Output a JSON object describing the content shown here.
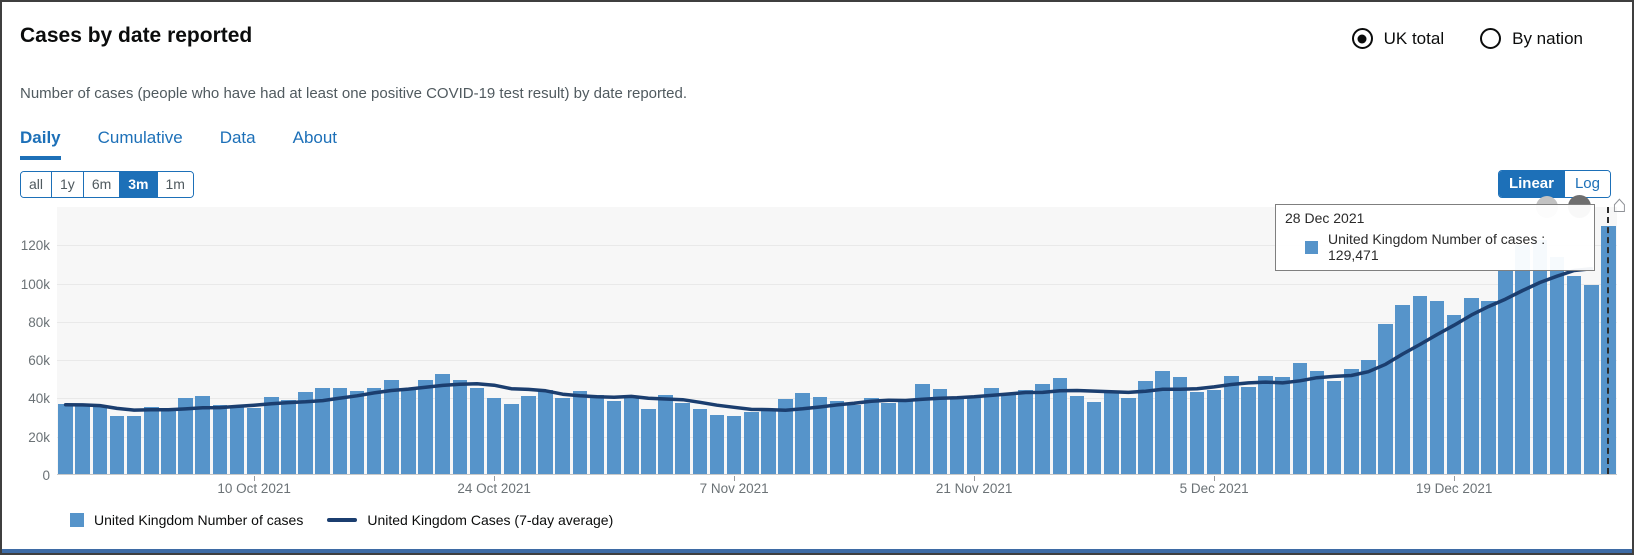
{
  "page": {
    "title": "Cases by date reported",
    "subtitle": "Number of cases (people who have had at least one positive COVID-19 test result) by date reported."
  },
  "area_toggle": {
    "uk_total": "UK total",
    "by_nation": "By nation",
    "selected": "UK total"
  },
  "tabs": {
    "daily": "Daily",
    "cumulative": "Cumulative",
    "data": "Data",
    "about": "About",
    "active": "Daily"
  },
  "ranges": {
    "all": "all",
    "y1": "1y",
    "m6": "6m",
    "m3": "3m",
    "m1": "1m",
    "active": "3m"
  },
  "scale": {
    "linear": "Linear",
    "log": "Log",
    "active": "Linear"
  },
  "tooltip": {
    "date": "28 Dec 2021",
    "series_text": "United Kingdom Number of cases : 129,471",
    "value": "129,471"
  },
  "legend": {
    "bars": "United Kingdom Number of cases",
    "line": "United Kingdom Cases (7-day average)"
  },
  "theme": {
    "accent_blue": "#1d70b8",
    "bar_blue": "#5694ca",
    "line_navy": "#1b3e6f",
    "text_gray": "#505a5f",
    "axis_gray": "#6b7276",
    "plot_bg": "#f7f7f7",
    "tooltip_border": "#7f7f7f"
  },
  "chart_data": {
    "type": "bar",
    "title": "Cases by date reported",
    "xlabel": "Date reported",
    "ylabel": "Number of cases",
    "x_range": [
      "29 Sep 2021",
      "28 Dec 2021"
    ],
    "n_points": 91,
    "x_tick_labels": [
      "10 Oct 2021",
      "24 Oct 2021",
      "7 Nov 2021",
      "21 Nov 2021",
      "5 Dec 2021",
      "19 Dec 2021"
    ],
    "x_tick_indices": [
      11,
      25,
      39,
      53,
      67,
      81
    ],
    "y_ticks": [
      "0",
      "20k",
      "40k",
      "60k",
      "80k",
      "100k",
      "120k"
    ],
    "y_tick_values": [
      0,
      20000,
      40000,
      60000,
      80000,
      100000,
      120000
    ],
    "ylim": [
      0,
      140000
    ],
    "grid": "horizontal",
    "legend_position": "bottom",
    "highlighted_point": {
      "x": "28 Dec 2021",
      "series": "United Kingdom Number of cases",
      "value": 129471
    },
    "series": [
      {
        "name": "United Kingdom Number of cases",
        "type": "bar",
        "color": "#5694ca",
        "values": [
          36722,
          36480,
          35577,
          30301,
          30439,
          35077,
          33869,
          39851,
          40701,
          36060,
          34950,
          34574,
          40224,
          38520,
          42776,
          45066,
          44932,
          43423,
          45140,
          49156,
          43738,
          49139,
          52009,
          49298,
          44985,
          39962,
          36567,
          40954,
          43941,
          39842,
          43467,
          41278,
          38009,
          40077,
          33865,
          41299,
          37269,
          34029,
          30693,
          30305,
          32322,
          33117,
          39329,
          42408,
          40375,
          38351,
          36120,
          39705,
          37243,
          38263,
          46807,
          44242,
          40004,
          39567,
          44917,
          42484,
          43676,
          47240,
          50091,
          40876,
          37681,
          42583,
          39716,
          48374,
          53945,
          50584,
          42848,
          43992,
          51459,
          45691,
          51342,
          50867,
          58194,
          54073,
          48854,
          54661,
          59610,
          78610,
          88376,
          93045,
          90418,
          82886,
          91743,
          90629,
          106122,
          119789,
          122186,
          113628,
          103558,
          98515,
          129471
        ]
      },
      {
        "name": "United Kingdom Cases (7-day average)",
        "type": "line",
        "color": "#1b3e6f",
        "derivation": "7-day trailing mean of the bar values (partial window at series start, most recent day excluded)"
      }
    ]
  }
}
